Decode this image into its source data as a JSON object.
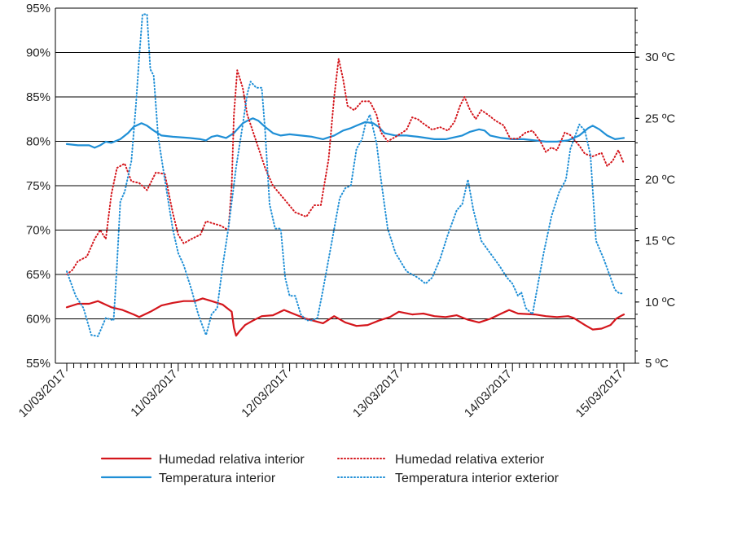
{
  "chart_data": {
    "type": "line",
    "x_labels": [
      "10/03/2017",
      "11/03/2017",
      "12/03/2017",
      "13/03/2017",
      "14/03/2017",
      "15/03/2017"
    ],
    "x_range_days": [
      0,
      5
    ],
    "y_left": {
      "ticks": [
        "95%",
        "90%",
        "85%",
        "80%",
        "75%",
        "70%",
        "65%",
        "60%",
        "55%"
      ],
      "range": [
        55,
        95
      ]
    },
    "y_right": {
      "ticks": [
        "30 ºC",
        "25 ºC",
        "20 ºC",
        "15 ºC",
        "10 ºC",
        "5 ºC"
      ],
      "range": [
        5,
        34
      ]
    },
    "series": [
      {
        "name": "Humedad relativa interior",
        "axis": "left",
        "color": "#d4161c",
        "dash": "solid",
        "points": [
          [
            0,
            61.3
          ],
          [
            0.1,
            61.7
          ],
          [
            0.2,
            61.7
          ],
          [
            0.28,
            62
          ],
          [
            0.4,
            61.3
          ],
          [
            0.5,
            61
          ],
          [
            0.6,
            60.5
          ],
          [
            0.65,
            60.2
          ],
          [
            0.75,
            60.8
          ],
          [
            0.85,
            61.5
          ],
          [
            0.95,
            61.8
          ],
          [
            1.05,
            62
          ],
          [
            1.15,
            62
          ],
          [
            1.22,
            62.3
          ],
          [
            1.3,
            62
          ],
          [
            1.4,
            61.6
          ],
          [
            1.48,
            60.8
          ],
          [
            1.5,
            59
          ],
          [
            1.52,
            58.1
          ],
          [
            1.55,
            58.6
          ],
          [
            1.6,
            59.3
          ],
          [
            1.67,
            59.8
          ],
          [
            1.75,
            60.3
          ],
          [
            1.85,
            60.4
          ],
          [
            1.95,
            61
          ],
          [
            2.05,
            60.5
          ],
          [
            2.15,
            60
          ],
          [
            2.3,
            59.5
          ],
          [
            2.4,
            60.3
          ],
          [
            2.5,
            59.6
          ],
          [
            2.6,
            59.2
          ],
          [
            2.7,
            59.3
          ],
          [
            2.8,
            59.8
          ],
          [
            2.9,
            60.2
          ],
          [
            2.98,
            60.8
          ],
          [
            3.1,
            60.5
          ],
          [
            3.2,
            60.6
          ],
          [
            3.3,
            60.3
          ],
          [
            3.4,
            60.2
          ],
          [
            3.5,
            60.4
          ],
          [
            3.6,
            59.9
          ],
          [
            3.7,
            59.6
          ],
          [
            3.8,
            60
          ],
          [
            3.9,
            60.6
          ],
          [
            3.97,
            61
          ],
          [
            4.05,
            60.6
          ],
          [
            4.2,
            60.5
          ],
          [
            4.3,
            60.3
          ],
          [
            4.4,
            60.2
          ],
          [
            4.5,
            60.3
          ],
          [
            4.55,
            60.1
          ],
          [
            4.65,
            59.3
          ],
          [
            4.72,
            58.8
          ],
          [
            4.8,
            58.9
          ],
          [
            4.88,
            59.3
          ],
          [
            4.93,
            60
          ],
          [
            4.97,
            60.3
          ],
          [
            5,
            60.5
          ]
        ]
      },
      {
        "name": "Temperatura interior",
        "axis": "right",
        "color": "#1f8fd6",
        "dash": "solid",
        "points": [
          [
            0,
            22.9
          ],
          [
            0.1,
            22.8
          ],
          [
            0.2,
            22.8
          ],
          [
            0.25,
            22.6
          ],
          [
            0.3,
            22.8
          ],
          [
            0.35,
            23.1
          ],
          [
            0.4,
            23
          ],
          [
            0.48,
            23.3
          ],
          [
            0.55,
            23.8
          ],
          [
            0.6,
            24.3
          ],
          [
            0.67,
            24.6
          ],
          [
            0.72,
            24.4
          ],
          [
            0.78,
            24
          ],
          [
            0.85,
            23.6
          ],
          [
            0.95,
            23.5
          ],
          [
            1.1,
            23.4
          ],
          [
            1.2,
            23.3
          ],
          [
            1.25,
            23.2
          ],
          [
            1.3,
            23.5
          ],
          [
            1.35,
            23.6
          ],
          [
            1.43,
            23.4
          ],
          [
            1.5,
            23.8
          ],
          [
            1.58,
            24.6
          ],
          [
            1.62,
            24.8
          ],
          [
            1.67,
            25
          ],
          [
            1.72,
            24.8
          ],
          [
            1.78,
            24.3
          ],
          [
            1.85,
            23.8
          ],
          [
            1.92,
            23.6
          ],
          [
            2,
            23.7
          ],
          [
            2.1,
            23.6
          ],
          [
            2.2,
            23.5
          ],
          [
            2.3,
            23.3
          ],
          [
            2.4,
            23.6
          ],
          [
            2.48,
            24
          ],
          [
            2.55,
            24.2
          ],
          [
            2.6,
            24.4
          ],
          [
            2.68,
            24.7
          ],
          [
            2.75,
            24.6
          ],
          [
            2.8,
            24.3
          ],
          [
            2.85,
            23.8
          ],
          [
            2.95,
            23.6
          ],
          [
            3.05,
            23.6
          ],
          [
            3.15,
            23.5
          ],
          [
            3.3,
            23.3
          ],
          [
            3.4,
            23.3
          ],
          [
            3.5,
            23.5
          ],
          [
            3.55,
            23.6
          ],
          [
            3.62,
            23.9
          ],
          [
            3.7,
            24.1
          ],
          [
            3.75,
            24
          ],
          [
            3.8,
            23.6
          ],
          [
            3.9,
            23.4
          ],
          [
            4,
            23.3
          ],
          [
            4.1,
            23.3
          ],
          [
            4.2,
            23.2
          ],
          [
            4.3,
            23.1
          ],
          [
            4.4,
            23.1
          ],
          [
            4.5,
            23.2
          ],
          [
            4.6,
            23.6
          ],
          [
            4.68,
            24.2
          ],
          [
            4.72,
            24.4
          ],
          [
            4.78,
            24.1
          ],
          [
            4.85,
            23.6
          ],
          [
            4.92,
            23.3
          ],
          [
            5,
            23.4
          ]
        ]
      },
      {
        "name": "Humedad relativa exterior",
        "axis": "left",
        "color": "#d4161c",
        "dash": "dotted",
        "points": [
          [
            0,
            65
          ],
          [
            0.05,
            65.5
          ],
          [
            0.1,
            66.5
          ],
          [
            0.18,
            67
          ],
          [
            0.25,
            69
          ],
          [
            0.3,
            70
          ],
          [
            0.35,
            69
          ],
          [
            0.4,
            74
          ],
          [
            0.45,
            77
          ],
          [
            0.52,
            77.5
          ],
          [
            0.58,
            75.5
          ],
          [
            0.65,
            75.3
          ],
          [
            0.72,
            74.5
          ],
          [
            0.8,
            76.5
          ],
          [
            0.88,
            76.3
          ],
          [
            0.95,
            72
          ],
          [
            1,
            69.5
          ],
          [
            1.05,
            68.5
          ],
          [
            1.12,
            69
          ],
          [
            1.2,
            69.5
          ],
          [
            1.25,
            71
          ],
          [
            1.3,
            70.8
          ],
          [
            1.38,
            70.5
          ],
          [
            1.45,
            70
          ],
          [
            1.48,
            75
          ],
          [
            1.5,
            83
          ],
          [
            1.53,
            88
          ],
          [
            1.58,
            86
          ],
          [
            1.62,
            83
          ],
          [
            1.7,
            80
          ],
          [
            1.78,
            77
          ],
          [
            1.85,
            75
          ],
          [
            1.95,
            73.5
          ],
          [
            2.05,
            72
          ],
          [
            2.15,
            71.5
          ],
          [
            2.22,
            72.8
          ],
          [
            2.28,
            72.8
          ],
          [
            2.35,
            78
          ],
          [
            2.4,
            85
          ],
          [
            2.44,
            89.3
          ],
          [
            2.48,
            87
          ],
          [
            2.52,
            84
          ],
          [
            2.58,
            83.5
          ],
          [
            2.65,
            84.5
          ],
          [
            2.72,
            84.5
          ],
          [
            2.78,
            83
          ],
          [
            2.82,
            81
          ],
          [
            2.88,
            80
          ],
          [
            2.95,
            80.5
          ],
          [
            3.05,
            81.3
          ],
          [
            3.1,
            82.7
          ],
          [
            3.15,
            82.5
          ],
          [
            3.2,
            82
          ],
          [
            3.28,
            81.3
          ],
          [
            3.35,
            81.6
          ],
          [
            3.42,
            81.2
          ],
          [
            3.48,
            82.2
          ],
          [
            3.53,
            84
          ],
          [
            3.57,
            85
          ],
          [
            3.62,
            83.5
          ],
          [
            3.67,
            82.5
          ],
          [
            3.72,
            83.5
          ],
          [
            3.78,
            83
          ],
          [
            3.85,
            82.3
          ],
          [
            3.92,
            81.8
          ],
          [
            3.98,
            80.3
          ],
          [
            4.05,
            80.3
          ],
          [
            4.12,
            81
          ],
          [
            4.18,
            81.2
          ],
          [
            4.25,
            80
          ],
          [
            4.3,
            78.8
          ],
          [
            4.35,
            79.3
          ],
          [
            4.4,
            79
          ],
          [
            4.47,
            81
          ],
          [
            4.52,
            80.7
          ],
          [
            4.6,
            79.5
          ],
          [
            4.65,
            78.6
          ],
          [
            4.72,
            78.3
          ],
          [
            4.8,
            78.7
          ],
          [
            4.85,
            77.2
          ],
          [
            4.9,
            77.8
          ],
          [
            4.95,
            79
          ],
          [
            5,
            77.5
          ]
        ]
      },
      {
        "name": "Temperatura interior exterior",
        "axis": "right",
        "color": "#1f8fd6",
        "dash": "dotted",
        "points": [
          [
            0,
            12.5
          ],
          [
            0.08,
            10.5
          ],
          [
            0.15,
            9.5
          ],
          [
            0.22,
            7.3
          ],
          [
            0.28,
            7.2
          ],
          [
            0.35,
            8.7
          ],
          [
            0.42,
            8.5
          ],
          [
            0.45,
            13
          ],
          [
            0.48,
            18.2
          ],
          [
            0.52,
            19
          ],
          [
            0.58,
            21.5
          ],
          [
            0.62,
            26
          ],
          [
            0.65,
            30
          ],
          [
            0.68,
            33.5
          ],
          [
            0.72,
            33.5
          ],
          [
            0.75,
            29
          ],
          [
            0.78,
            28.5
          ],
          [
            0.82,
            23.5
          ],
          [
            0.88,
            20
          ],
          [
            0.95,
            16
          ],
          [
            1,
            14
          ],
          [
            1.05,
            13
          ],
          [
            1.12,
            11
          ],
          [
            1.18,
            9
          ],
          [
            1.22,
            8
          ],
          [
            1.25,
            7.3
          ],
          [
            1.3,
            9
          ],
          [
            1.35,
            9.5
          ],
          [
            1.4,
            13
          ],
          [
            1.45,
            16
          ],
          [
            1.52,
            21
          ],
          [
            1.58,
            24.5
          ],
          [
            1.62,
            27
          ],
          [
            1.65,
            28
          ],
          [
            1.7,
            27.5
          ],
          [
            1.75,
            27.5
          ],
          [
            1.78,
            24
          ],
          [
            1.82,
            18
          ],
          [
            1.87,
            16
          ],
          [
            1.92,
            16
          ],
          [
            1.96,
            12
          ],
          [
            2,
            10.5
          ],
          [
            2.05,
            10.5
          ],
          [
            2.1,
            9
          ],
          [
            2.15,
            8.5
          ],
          [
            2.2,
            8.5
          ],
          [
            2.25,
            8.7
          ],
          [
            2.3,
            11
          ],
          [
            2.38,
            15
          ],
          [
            2.45,
            18.5
          ],
          [
            2.5,
            19.3
          ],
          [
            2.55,
            19.5
          ],
          [
            2.6,
            22.5
          ],
          [
            2.65,
            23.3
          ],
          [
            2.68,
            24.5
          ],
          [
            2.72,
            25.3
          ],
          [
            2.78,
            23
          ],
          [
            2.82,
            20
          ],
          [
            2.88,
            16
          ],
          [
            2.95,
            14
          ],
          [
            3.05,
            12.5
          ],
          [
            3.15,
            12
          ],
          [
            3.22,
            11.5
          ],
          [
            3.28,
            12
          ],
          [
            3.35,
            13.5
          ],
          [
            3.42,
            15.5
          ],
          [
            3.5,
            17.5
          ],
          [
            3.55,
            18
          ],
          [
            3.6,
            20
          ],
          [
            3.65,
            17.5
          ],
          [
            3.72,
            15
          ],
          [
            3.8,
            14
          ],
          [
            3.88,
            13
          ],
          [
            3.95,
            12
          ],
          [
            4,
            11.5
          ],
          [
            4.05,
            10.5
          ],
          [
            4.08,
            10.8
          ],
          [
            4.12,
            9.5
          ],
          [
            4.18,
            9
          ],
          [
            4.22,
            11
          ],
          [
            4.28,
            14
          ],
          [
            4.35,
            17
          ],
          [
            4.42,
            19
          ],
          [
            4.48,
            20
          ],
          [
            4.52,
            22.5
          ],
          [
            4.56,
            23.5
          ],
          [
            4.6,
            24.5
          ],
          [
            4.65,
            24
          ],
          [
            4.7,
            22
          ],
          [
            4.75,
            15
          ],
          [
            4.82,
            13.5
          ],
          [
            4.88,
            12
          ],
          [
            4.92,
            11
          ],
          [
            4.96,
            10.7
          ],
          [
            5,
            10.7
          ]
        ]
      }
    ],
    "legend": {
      "position": "bottom",
      "items": [
        {
          "label": "Humedad relativa interior",
          "color": "#d4161c",
          "dash": "solid"
        },
        {
          "label": "Humedad relativa exterior",
          "color": "#d4161c",
          "dash": "dotted"
        },
        {
          "label": "Temperatura interior",
          "color": "#1f8fd6",
          "dash": "solid"
        },
        {
          "label": "Temperatura interior exterior",
          "color": "#1f8fd6",
          "dash": "dotted"
        }
      ]
    },
    "grid": true
  }
}
